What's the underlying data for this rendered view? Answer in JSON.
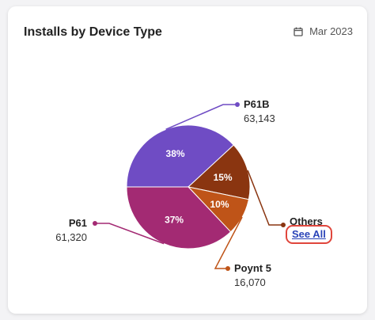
{
  "card": {
    "title": "Installs by Device Type",
    "date_label": "Mar 2023",
    "see_all_label": "See All"
  },
  "icons": {
    "date": "calendar-icon"
  },
  "chart_data": {
    "type": "pie",
    "title": "Installs by Device Type",
    "slices": [
      {
        "name": "P61B",
        "value": 63143,
        "percent_label": "38%",
        "value_label": "63,143",
        "color": "#6f4cc4"
      },
      {
        "name": "Others",
        "value": 25000,
        "percent_label": "15%",
        "value_label": "",
        "color": "#8a3510"
      },
      {
        "name": "Poynt 5",
        "value": 16070,
        "percent_label": "10%",
        "value_label": "16,070",
        "color": "#bf5418"
      },
      {
        "name": "P61",
        "value": 61320,
        "percent_label": "37%",
        "value_label": "61,320",
        "color": "#a32a73"
      }
    ],
    "legend": "callout-labels"
  }
}
